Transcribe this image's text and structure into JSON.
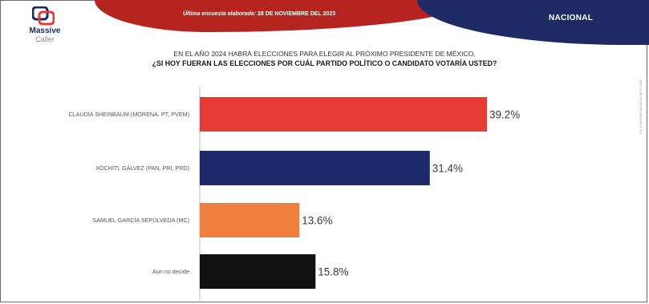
{
  "header": {
    "survey_date_label": "Última encuesta elaborada:",
    "survey_date_value": "28 DE NOVIEMBRE DEL 2023",
    "scope": "NACIONAL"
  },
  "logo": {
    "line1": "Massive",
    "line2": "Caller"
  },
  "question": {
    "line1": "EN EL AÑO 2024 HABRÁ ELECCIONES PARA ELEGIR AL PRÓXIMO PRESIDENTE DE MÉXICO,",
    "line2": "¿SI HOY FUERAN LAS ELECCIONES POR CUÁL PARTIDO POLÍTICO O CANDIDATO VOTARÍA USTED?"
  },
  "side_note": "D.R. (C) MASSIVE CALLER S.A. DE C.V. 2023",
  "colors": {
    "header_red": "#b5241f",
    "header_blue": "#1d2a63",
    "bar_red": "#e63c36",
    "bar_navy": "#1c2a6b",
    "bar_orange": "#ef7f3d",
    "bar_black": "#111111"
  },
  "chart_data": {
    "type": "bar",
    "orientation": "horizontal",
    "categories": [
      "CLAUDIA SHEINBAUM (MORENA, PT, PVEM)",
      "XÓCHITL GÁLVEZ (PAN, PRI, PRD)",
      "SAMUEL GARCÍA SEPÚLVEDA (MC)",
      "Aún no decide"
    ],
    "values": [
      39.2,
      31.4,
      13.6,
      15.8
    ],
    "value_labels": [
      "39.2%",
      "31.4%",
      "13.6%",
      "15.8%"
    ],
    "bar_colors": [
      "#e63c36",
      "#1c2a6b",
      "#ef7f3d",
      "#111111"
    ],
    "xlim": [
      0,
      39.2
    ],
    "grid": false,
    "legend": "none",
    "title": "",
    "xlabel": "",
    "ylabel": ""
  }
}
